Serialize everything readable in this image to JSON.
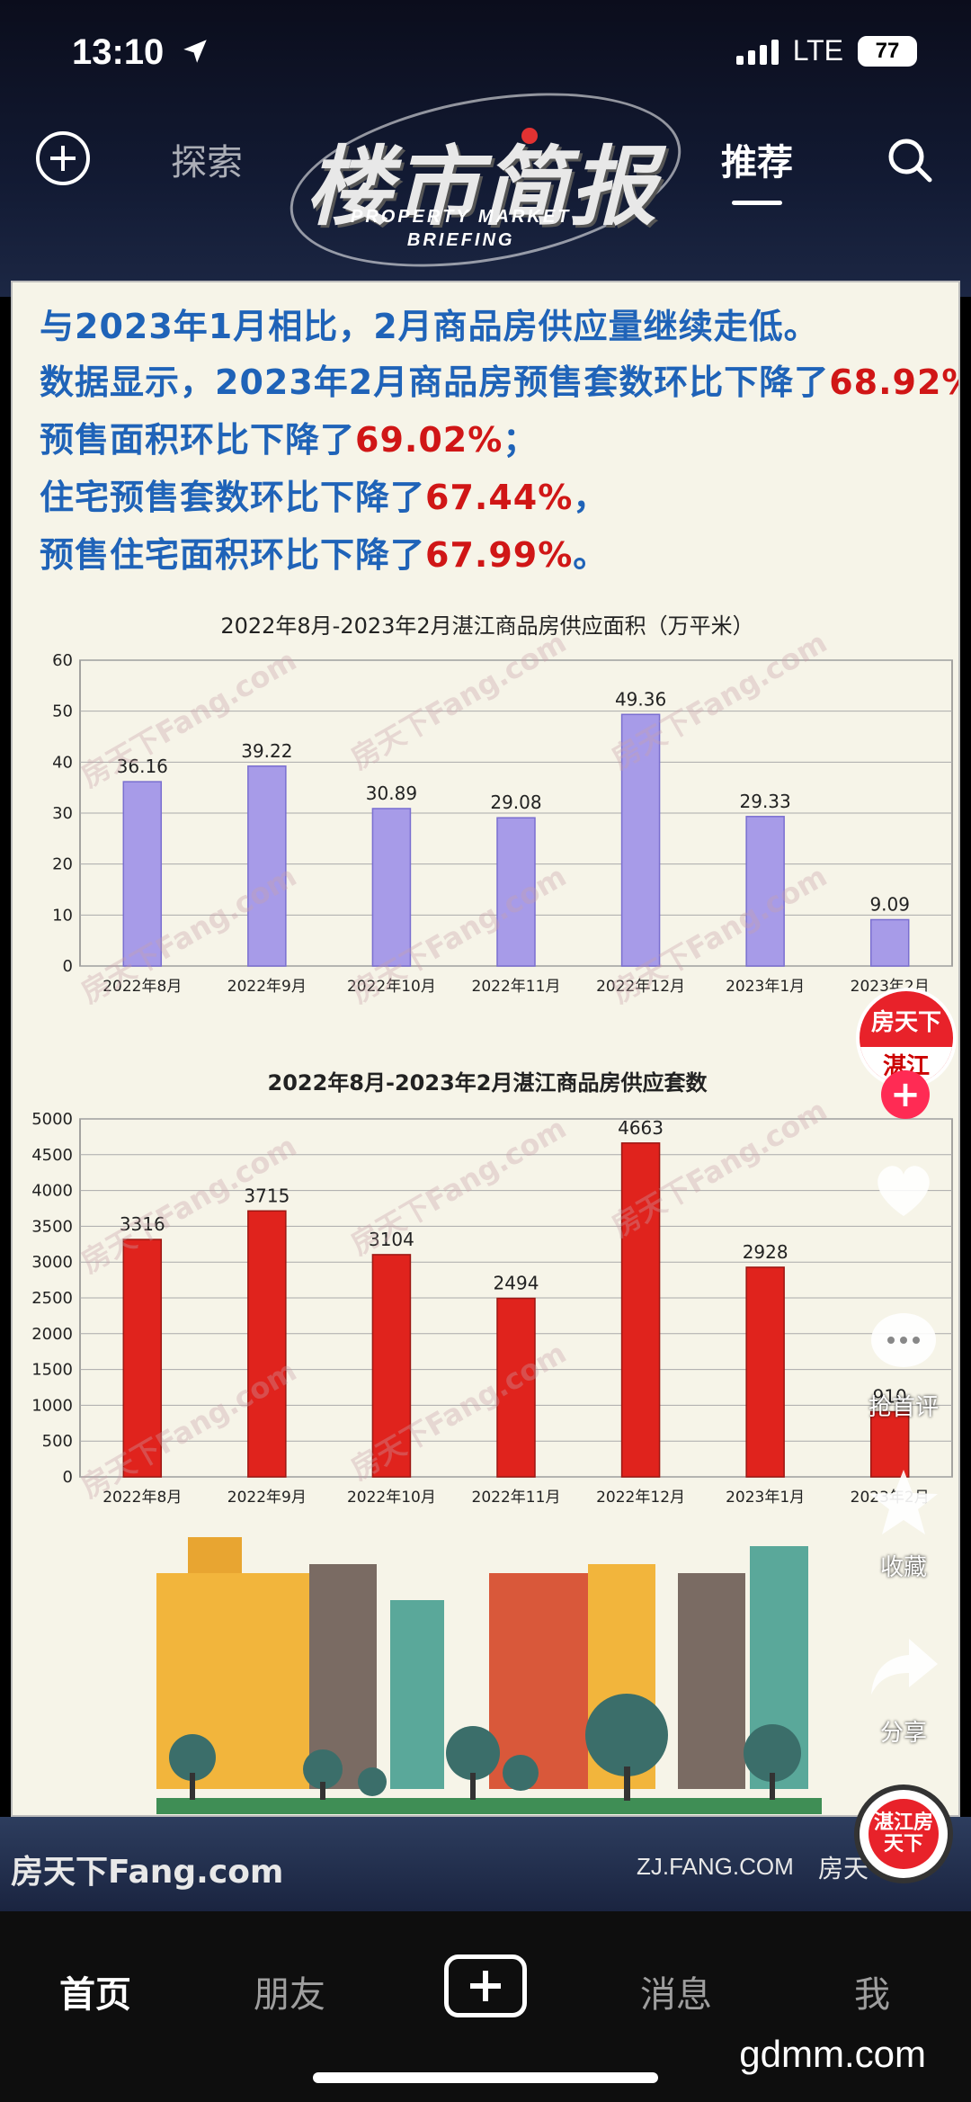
{
  "status_bar": {
    "time": "13:10",
    "network": "LTE",
    "battery": "77"
  },
  "top_nav": {
    "tabs": [
      {
        "label": "探索"
      },
      {
        "label": "推荐"
      }
    ],
    "icons": [
      "plus-icon",
      "search-icon"
    ]
  },
  "logo": {
    "title": "楼市简报",
    "subtitle_line1": "PROPERTY MARKET",
    "subtitle_line2": "BRIEFING"
  },
  "headlines": [
    {
      "text": "与2023年1月相比，2月商品房供应量继续走低。",
      "highlight": ""
    },
    {
      "text": "数据显示，2023年2月商品房预售套数环比下降了",
      "highlight": "68.92%",
      "suffix": "%，"
    },
    {
      "text": "预售面积环比下降了",
      "highlight": "69.02%",
      "suffix": "；"
    },
    {
      "text": "住宅预售套数环比下降了",
      "highlight": "67.44%",
      "suffix": "，"
    },
    {
      "text": "预售住宅面积环比下降了",
      "highlight": "67.99%",
      "suffix": "。"
    }
  ],
  "chart_data": [
    {
      "type": "bar",
      "title": "2022年8月-2023年2月湛江商品房供应面积（万平米）",
      "categories": [
        "2022年8月",
        "2022年9月",
        "2022年10月",
        "2022年11月",
        "2022年12月",
        "2023年1月",
        "2023年2月"
      ],
      "values": [
        36.16,
        39.22,
        30.89,
        29.08,
        49.36,
        29.33,
        9.09
      ],
      "value_labels": [
        "36.16",
        "39.22",
        "30.89",
        "29.08",
        "49.36",
        "29.33",
        "9.09"
      ],
      "yticks": [
        0,
        10,
        20,
        30,
        40,
        50,
        60
      ],
      "ylim": [
        0,
        60
      ],
      "grid": true,
      "color": "#a79be8"
    },
    {
      "type": "bar",
      "title": "2022年8月-2023年2月湛江商品房供应套数",
      "categories": [
        "2022年8月",
        "2022年9月",
        "2022年10月",
        "2022年11月",
        "2022年12月",
        "2023年1月",
        "2023年2月"
      ],
      "values": [
        3316,
        3715,
        3104,
        2494,
        4663,
        2928,
        910
      ],
      "value_labels": [
        "3316",
        "3715",
        "3104",
        "2494",
        "4663",
        "2928",
        "910"
      ],
      "yticks": [
        0,
        500,
        1000,
        1500,
        2000,
        2500,
        3000,
        3500,
        4000,
        4500,
        5000
      ],
      "ylim": [
        0,
        5000
      ],
      "grid": true,
      "color": "#e0231d"
    }
  ],
  "watermark_text": "房天下Fang.com",
  "footer": {
    "left": "房天下Fang.com",
    "right": "ZJ.FANG.COM",
    "right_brand": "房天"
  },
  "right_rail": {
    "avatar_top": "房天下",
    "avatar_bottom": "湛江",
    "comment_label": "抢首评",
    "favorite_label": "收藏",
    "share_label": "分享",
    "music_text": "湛江房天下"
  },
  "bottom_nav": {
    "items": [
      {
        "label": "首页"
      },
      {
        "label": "朋友"
      },
      {
        "label": "消息"
      },
      {
        "label": "我"
      }
    ]
  },
  "site_watermark": "gdmm.com",
  "colors": {
    "headline_blue": "#1f63b8",
    "highlight_red": "#d01616",
    "area_bar": "#a79be8",
    "units_bar": "#e0231d"
  }
}
